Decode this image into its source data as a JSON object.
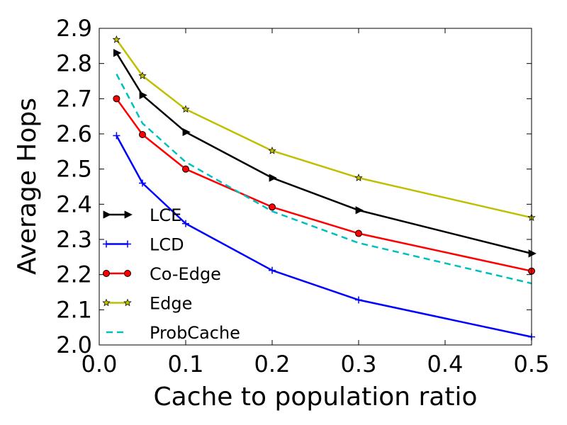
{
  "chart_data": {
    "type": "line",
    "xlabel": "Cache to population ratio",
    "ylabel": "Average Hops",
    "xlim": [
      0.0,
      0.5
    ],
    "ylim": [
      2.0,
      2.9
    ],
    "xticks": [
      "0.0",
      "0.1",
      "0.2",
      "0.3",
      "0.4",
      "0.5"
    ],
    "yticks": [
      "2.0",
      "2.1",
      "2.2",
      "2.3",
      "2.4",
      "2.5",
      "2.6",
      "2.7",
      "2.8",
      "2.9"
    ],
    "grid": false,
    "legend_position": "lower-left",
    "x": [
      0.02,
      0.05,
      0.1,
      0.2,
      0.3,
      0.5
    ],
    "series": [
      {
        "name": "LCE",
        "color": "#000000",
        "marker": "triangle-right",
        "dash": "solid",
        "values": [
          2.83,
          2.71,
          2.605,
          2.475,
          2.383,
          2.26
        ]
      },
      {
        "name": "LCD",
        "color": "#0000ff",
        "marker": "plus",
        "dash": "solid",
        "values": [
          2.595,
          2.46,
          2.345,
          2.212,
          2.128,
          2.023
        ]
      },
      {
        "name": "Co-Edge",
        "color": "#ff0000",
        "marker": "circle",
        "dash": "solid",
        "values": [
          2.7,
          2.598,
          2.5,
          2.392,
          2.317,
          2.21
        ]
      },
      {
        "name": "Edge",
        "color": "#bfbf00",
        "marker": "star",
        "dash": "solid",
        "values": [
          2.868,
          2.765,
          2.67,
          2.552,
          2.475,
          2.362
        ]
      },
      {
        "name": "ProbCache",
        "color": "#00bfbf",
        "marker": "none",
        "dash": "dashed",
        "values": [
          2.77,
          2.63,
          2.52,
          2.38,
          2.29,
          2.175
        ]
      }
    ]
  }
}
